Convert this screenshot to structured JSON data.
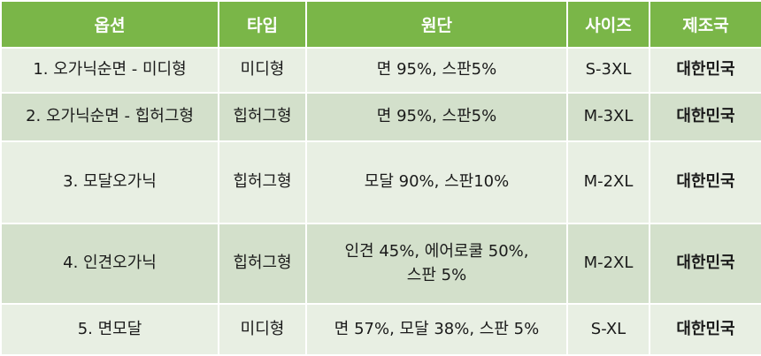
{
  "table": {
    "headers": [
      "옵션",
      "타입",
      "원단",
      "사이즈",
      "제조국"
    ],
    "rows": [
      {
        "option": "1. 오가닉순면 - 미디형",
        "type": "미디형",
        "fabric": [
          "면 95%, 스판5%"
        ],
        "size": "S-3XL",
        "origin": "대한민국"
      },
      {
        "option": "2. 오가닉순면 - 힙허그형",
        "type": "힙허그형",
        "fabric": [
          "면 95%, 스판5%"
        ],
        "size": "M-3XL",
        "origin": "대한민국"
      },
      {
        "option": "3. 모달오가닉",
        "type": "힙허그형",
        "fabric": [
          "모달 90%, 스판10%"
        ],
        "size": "M-2XL",
        "origin": "대한민국"
      },
      {
        "option": "4. 인견오가닉",
        "type": "힙허그형",
        "fabric": [
          "인견 45%, 에어로쿨 50%,",
          "스판 5%"
        ],
        "size": "M-2XL",
        "origin": "대한민국"
      },
      {
        "option": "5. 면모달",
        "type": "미디형",
        "fabric": [
          "면 57%, 모달 38%, 스판 5%"
        ],
        "size": "S-XL",
        "origin": "대한민국"
      }
    ]
  },
  "colors": {
    "header_bg": "#7ab648",
    "header_text": "#ffffff",
    "row_light": "#e8efe3",
    "row_dark": "#d3e0cb"
  }
}
